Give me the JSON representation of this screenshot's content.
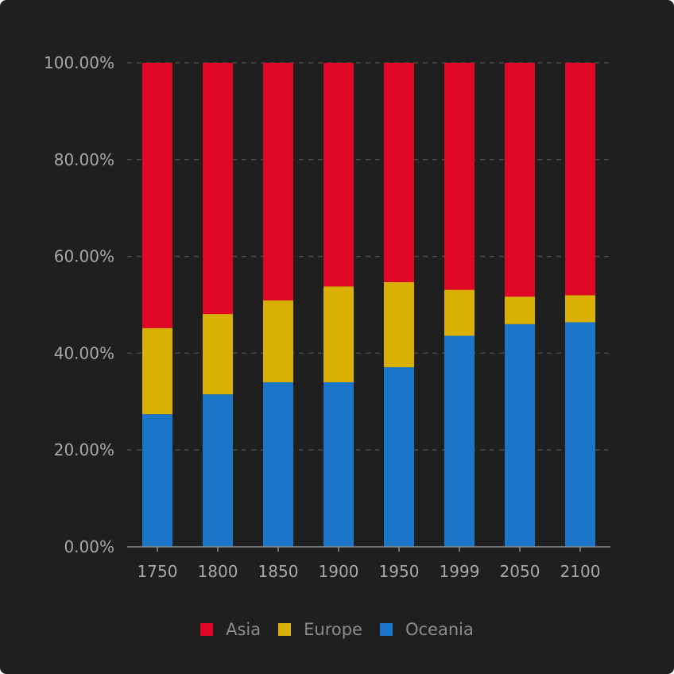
{
  "chart_data": {
    "type": "bar",
    "stacked": true,
    "percent": true,
    "categories": [
      "1750",
      "1800",
      "1850",
      "1900",
      "1950",
      "1999",
      "2050",
      "2100"
    ],
    "series": [
      {
        "name": "Oceania",
        "color": "#1b76c9",
        "values": [
          27.4,
          31.5,
          34.0,
          34.0,
          37.1,
          43.6,
          46.0,
          46.4
        ]
      },
      {
        "name": "Europe",
        "color": "#dbb004",
        "values": [
          17.8,
          16.6,
          16.9,
          19.8,
          17.6,
          9.5,
          5.7,
          5.6
        ]
      },
      {
        "name": "Asia",
        "color": "#e00626",
        "values": [
          54.8,
          51.9,
          49.1,
          46.2,
          45.3,
          46.9,
          48.3,
          48.0
        ]
      }
    ],
    "ylim": [
      0,
      100
    ],
    "y_ticks": [
      "0.00%",
      "20.00%",
      "40.00%",
      "60.00%",
      "80.00%",
      "100.00%"
    ],
    "grid": true,
    "legend_position": "bottom",
    "legend_order": [
      "Asia",
      "Europe",
      "Oceania"
    ]
  }
}
